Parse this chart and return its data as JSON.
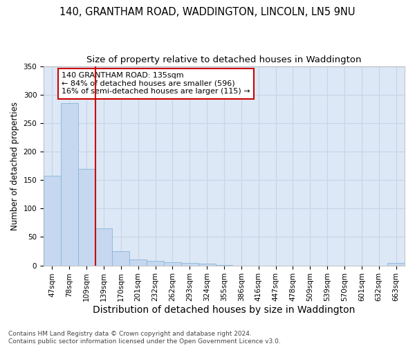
{
  "title1": "140, GRANTHAM ROAD, WADDINGTON, LINCOLN, LN5 9NU",
  "title2": "Size of property relative to detached houses in Waddington",
  "xlabel": "Distribution of detached houses by size in Waddington",
  "ylabel": "Number of detached properties",
  "categories": [
    "47sqm",
    "78sqm",
    "109sqm",
    "139sqm",
    "170sqm",
    "201sqm",
    "232sqm",
    "262sqm",
    "293sqm",
    "324sqm",
    "355sqm",
    "386sqm",
    "416sqm",
    "447sqm",
    "478sqm",
    "509sqm",
    "539sqm",
    "570sqm",
    "601sqm",
    "632sqm",
    "663sqm"
  ],
  "values": [
    157,
    285,
    170,
    65,
    25,
    10,
    8,
    5,
    4,
    3,
    1,
    0,
    0,
    0,
    0,
    0,
    0,
    0,
    0,
    0,
    4
  ],
  "bar_color": "#c5d8f0",
  "bar_edge_color": "#8ab4d8",
  "vline_x_index": 3,
  "vline_color": "#cc0000",
  "annotation_text": "140 GRANTHAM ROAD: 135sqm\n← 84% of detached houses are smaller (596)\n16% of semi-detached houses are larger (115) →",
  "annotation_box_color": "#cc0000",
  "ylim": [
    0,
    350
  ],
  "yticks": [
    0,
    50,
    100,
    150,
    200,
    250,
    300,
    350
  ],
  "grid_color": "#c8d4e8",
  "background_color": "#dce8f5",
  "footer": "Contains HM Land Registry data © Crown copyright and database right 2024.\nContains public sector information licensed under the Open Government Licence v3.0.",
  "title1_fontsize": 10.5,
  "title2_fontsize": 9.5,
  "xlabel_fontsize": 10,
  "ylabel_fontsize": 8.5,
  "tick_fontsize": 7.5,
  "footer_fontsize": 6.5
}
